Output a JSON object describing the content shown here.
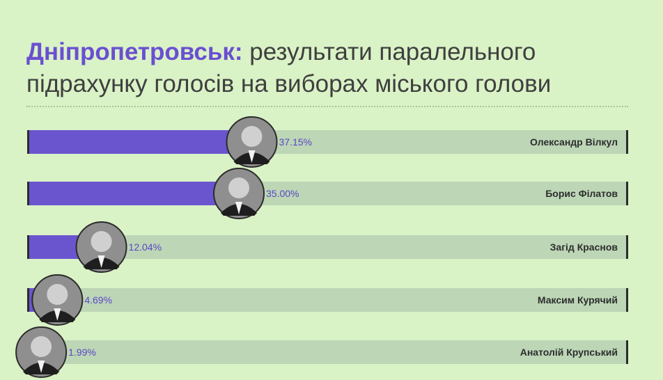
{
  "title": {
    "city": "Дніпропетровськ:",
    "rest": " результати паралельного підрахунку голосів на виборах міського голови"
  },
  "colors": {
    "bar_fill": "#6a55cf",
    "bar_track": "#bcd6b6",
    "edge": "#2b2b2b",
    "value_text": "#5b45c6"
  },
  "chart_data": {
    "type": "bar",
    "orientation": "horizontal",
    "categories": [
      "Олександр Вілкул",
      "Борис Філатов",
      "Загід Краснов",
      "Максим Курячий",
      "Анатолій Крупський"
    ],
    "values": [
      37.15,
      35.0,
      12.04,
      4.69,
      1.99
    ],
    "value_labels": [
      "37.15%",
      "35.00%",
      "12.04%",
      "4.69%",
      "1.99%"
    ],
    "xlim": [
      0,
      100
    ],
    "grid": false,
    "legend": "none",
    "title": "Дніпропетровськ: результати паралельного підрахунку голосів на виборах міського голови",
    "xlabel": "",
    "ylabel": ""
  }
}
